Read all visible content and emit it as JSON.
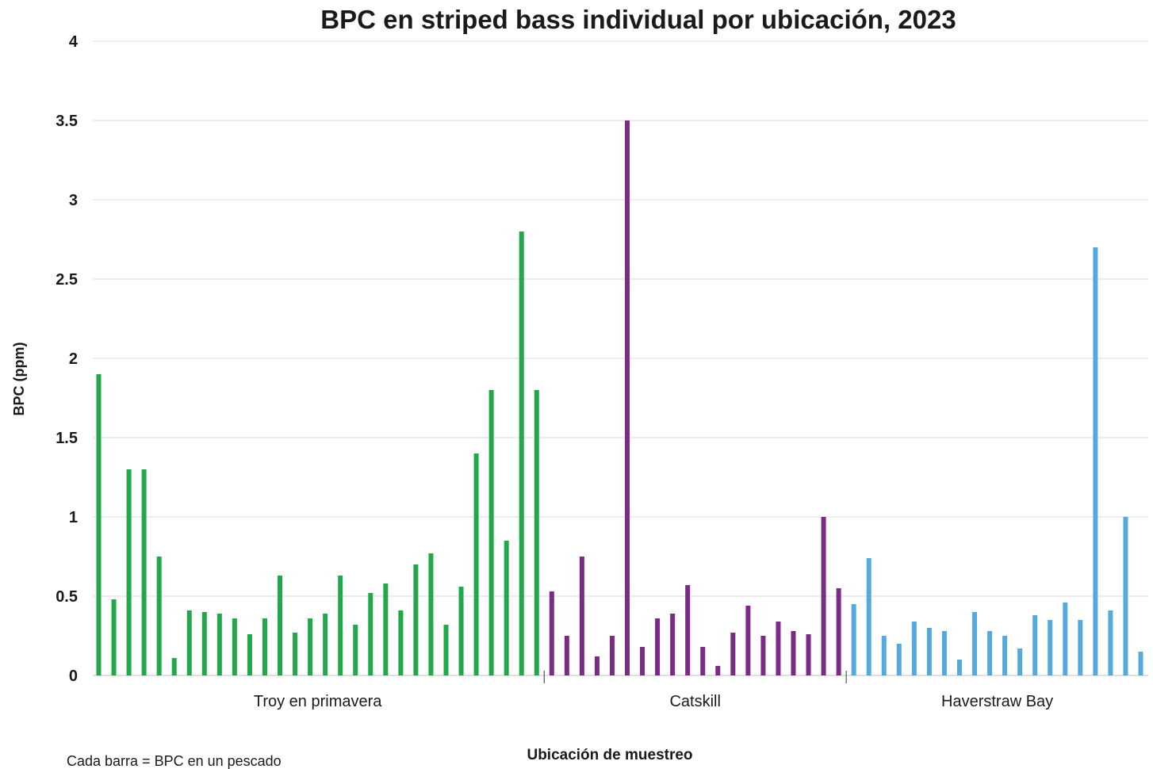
{
  "chart_data": {
    "type": "bar",
    "title": "BPC en striped bass individual por ubicación, 2023",
    "xlabel": "Ubicación de muestreo",
    "ylabel": "BPC (ppm)",
    "ylim": [
      0,
      4
    ],
    "yticks": [
      "0",
      "0.5",
      "1",
      "1.5",
      "2",
      "2.5",
      "3",
      "3.5",
      "4"
    ],
    "grid": true,
    "note": "Cada barra = BPC en un pescado",
    "groups": [
      {
        "name": "Troy en primavera",
        "color": "#22a84a",
        "values": [
          1.9,
          0.48,
          1.3,
          1.3,
          0.75,
          0.11,
          0.41,
          0.4,
          0.39,
          0.36,
          0.26,
          0.36,
          0.63,
          0.27,
          0.36,
          0.39,
          0.63,
          0.32,
          0.52,
          0.58,
          0.41,
          0.7,
          0.77,
          0.32,
          0.56,
          1.4,
          1.8,
          0.85,
          2.8,
          1.8
        ]
      },
      {
        "name": "Catskill",
        "color": "#7b2a86",
        "values": [
          0.53,
          0.25,
          0.75,
          0.12,
          0.25,
          3.5,
          0.18,
          0.36,
          0.39,
          0.57,
          0.18,
          0.06,
          0.27,
          0.44,
          0.25,
          0.34,
          0.28,
          0.26,
          1.0,
          0.55
        ]
      },
      {
        "name": "Haverstraw Bay",
        "color": "#55aadd",
        "values": [
          0.45,
          0.74,
          0.25,
          0.2,
          0.34,
          0.3,
          0.28,
          0.1,
          0.4,
          0.28,
          0.25,
          0.17,
          0.38,
          0.35,
          0.46,
          0.35,
          2.7,
          0.41,
          1.0,
          0.15
        ]
      }
    ]
  }
}
